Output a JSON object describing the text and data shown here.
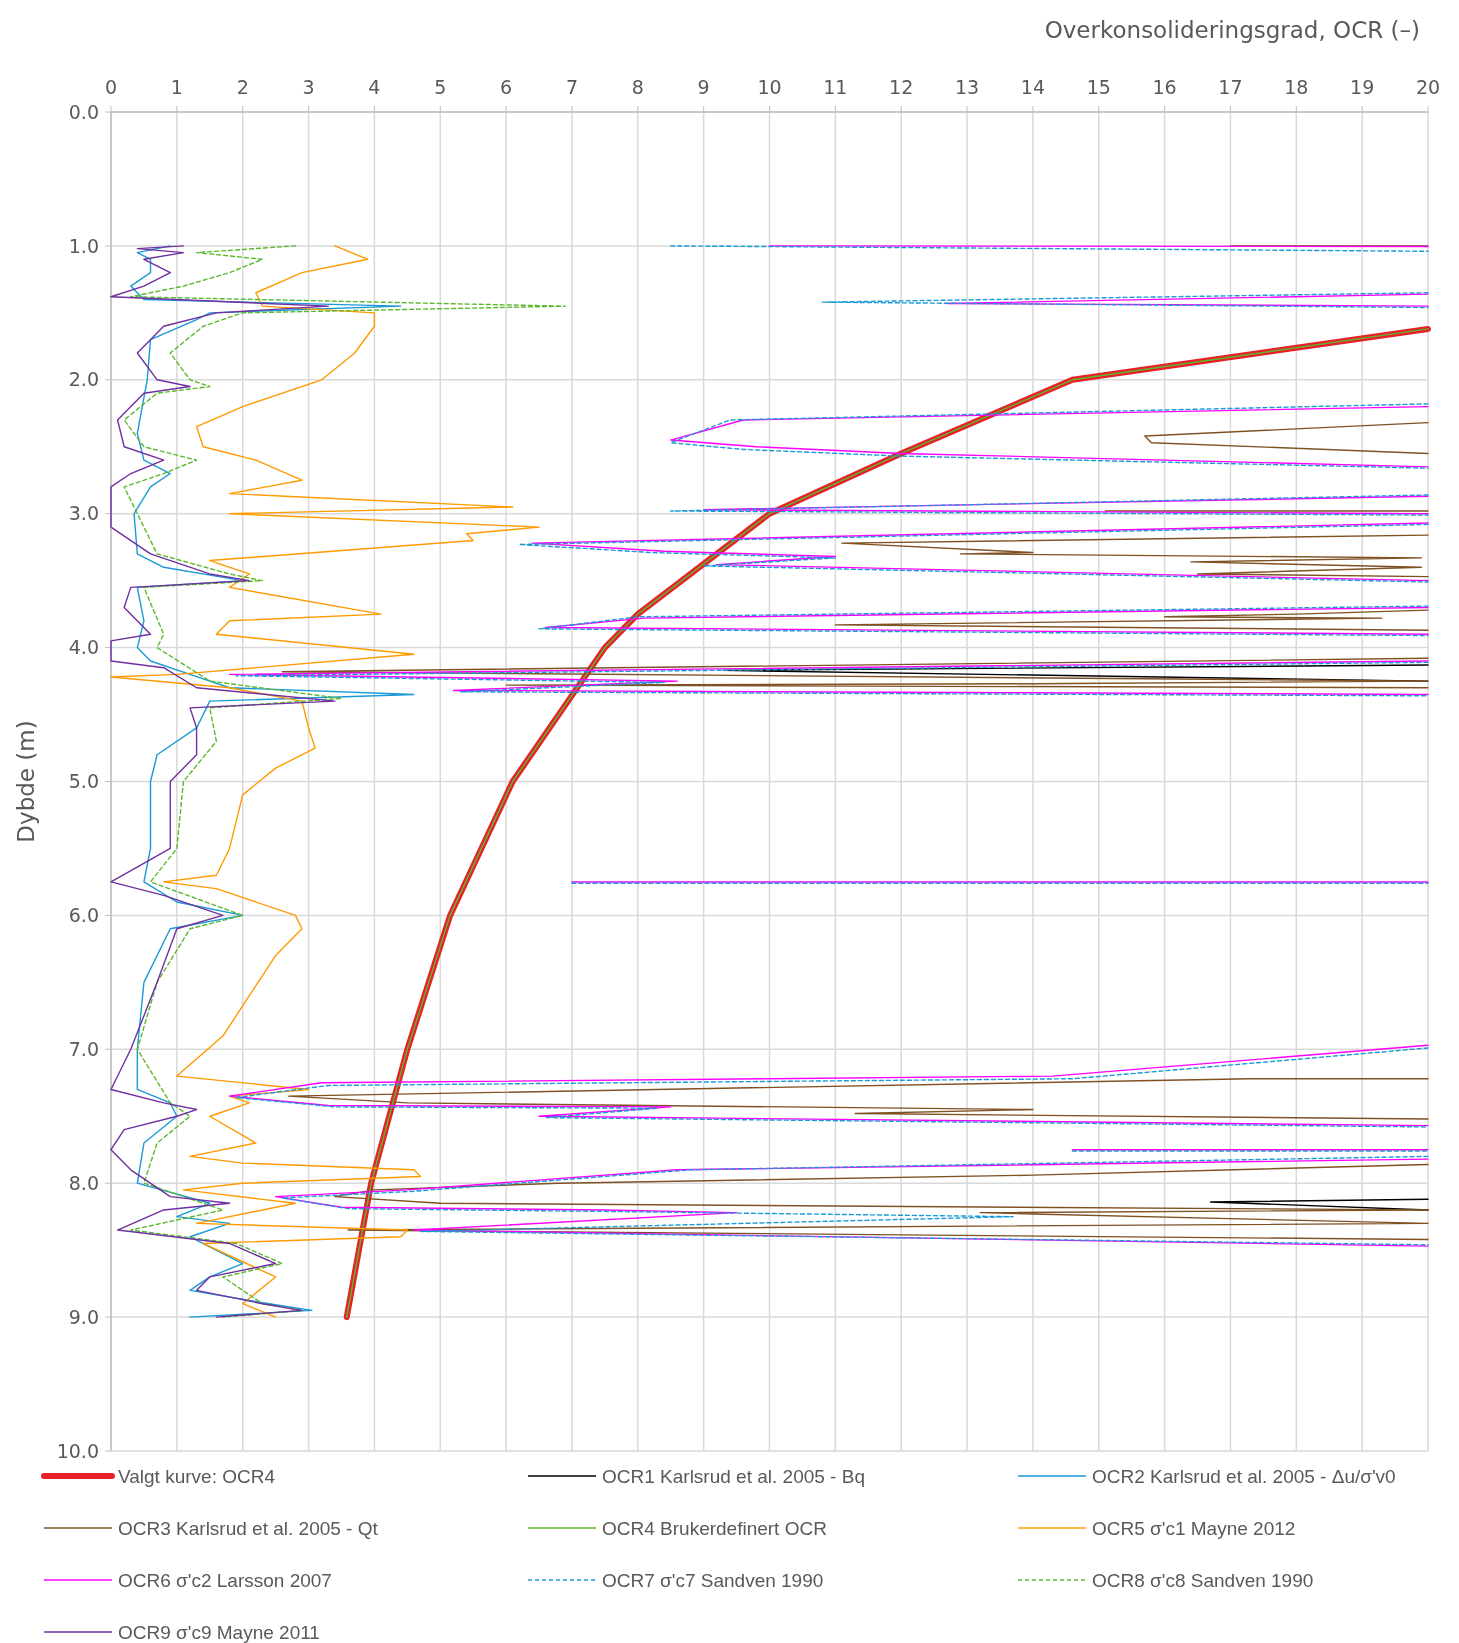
{
  "chart_data": {
    "type": "line",
    "xlabel": "Overkonsolideringsgrad, OCR (–)",
    "ylabel": "Dybde (m)",
    "xlim": [
      0,
      20
    ],
    "xticks": [
      0,
      1,
      2,
      3,
      4,
      5,
      6,
      7,
      8,
      9,
      10,
      11,
      12,
      13,
      14,
      15,
      16,
      17,
      18,
      19,
      20
    ],
    "ylim": [
      10,
      0
    ],
    "yticks": [
      {
        "value": 0,
        "label": "0.0"
      },
      {
        "value": 1,
        "label": "1.0"
      },
      {
        "value": 2,
        "label": "2.0"
      },
      {
        "value": 3,
        "label": "3.0"
      },
      {
        "value": 4,
        "label": "4.0"
      },
      {
        "value": 5,
        "label": "5.0"
      },
      {
        "value": 6,
        "label": "6.0"
      },
      {
        "value": 7,
        "label": "7.0"
      },
      {
        "value": 8,
        "label": "8.0"
      },
      {
        "value": 9,
        "label": "9.0"
      },
      {
        "value": 10,
        "label": "10.0"
      }
    ],
    "grid": true,
    "legend": "bottom",
    "series": [
      {
        "name": "Valgt kurve: OCR4",
        "color": "#e8202a",
        "line_style": "solid",
        "x": [
          20,
          14.6,
          12,
          10,
          8,
          7.5,
          6.1,
          5.15,
          4.5,
          3.95,
          3.58
        ],
        "values": [
          1.62,
          2.0,
          2.55,
          3.0,
          3.75,
          4.0,
          5.0,
          6.0,
          7.0,
          8.0,
          9.0
        ]
      },
      {
        "name": "OCR1 Karlsrud et al. 2005 - Bq",
        "color": "#000000",
        "line_style": "solid",
        "x": [
          20,
          9.3,
          20,
          null,
          20,
          16.7,
          20
        ],
        "values": [
          4.13,
          4.17,
          4.25,
          null,
          8.12,
          8.14,
          8.2
        ]
      },
      {
        "name": "OCR2 Karlsrud et al. 2005 - Δu/σ'v0",
        "color": "#1a9ad6",
        "line_style": "solid",
        "x": [
          0.9,
          0.4,
          0.6,
          0.6,
          0.3,
          0.5,
          4.4,
          1.5,
          1.3,
          0.6,
          0.55,
          0.4,
          0.5,
          0.9,
          0.6,
          0.35,
          0.4,
          0.8,
          2.0,
          0.4,
          0.5,
          0.4,
          0.6,
          1.2,
          1.8,
          4.6,
          1.5,
          1.3,
          0.7,
          0.6,
          0.6,
          0.5,
          1.0,
          2.0,
          0.9,
          0.5,
          0.4,
          0.4,
          0.9,
          1.0,
          0.5,
          0.4,
          1.5,
          1.0,
          1.8,
          1.2,
          2.0,
          1.5,
          1.2,
          2.4,
          3.05,
          1.2
        ],
        "values": [
          1.0,
          1.05,
          1.1,
          1.2,
          1.3,
          1.4,
          1.45,
          1.5,
          1.55,
          1.7,
          2.0,
          2.4,
          2.6,
          2.7,
          2.8,
          3.0,
          3.3,
          3.4,
          3.5,
          3.55,
          3.8,
          4.0,
          4.1,
          4.2,
          4.3,
          4.35,
          4.4,
          4.6,
          4.8,
          5.0,
          5.5,
          5.75,
          5.9,
          6.0,
          6.1,
          6.5,
          7.0,
          7.3,
          7.4,
          7.5,
          7.7,
          8.0,
          8.15,
          8.25,
          8.3,
          8.4,
          8.6,
          8.7,
          8.8,
          8.9,
          8.95,
          9.0
        ]
      },
      {
        "name": "OCR3 Karlsrud et al. 2005 - Qt",
        "color": "#7f5123",
        "line_style": "solid",
        "x": [
          17,
          20,
          null,
          20,
          15.7,
          15.8,
          20,
          null,
          15.1,
          20,
          null,
          20,
          11.1,
          14,
          12.9,
          19.9,
          16.4,
          19.9,
          16.5,
          20,
          null,
          20,
          18,
          16,
          19.3,
          11,
          20,
          null,
          20,
          2.6,
          20,
          14,
          6,
          20,
          null,
          20,
          17.3,
          2.7,
          4.5,
          14,
          11.3,
          20,
          null,
          20,
          14,
          6.8,
          4,
          3.4,
          5,
          20,
          13.2,
          14,
          20,
          3.6,
          20
        ],
        "values": [
          1.0,
          1.0,
          null,
          2.32,
          2.42,
          2.47,
          2.55,
          null,
          2.98,
          2.98,
          null,
          3.16,
          3.22,
          3.29,
          3.3,
          3.33,
          3.36,
          3.4,
          3.45,
          3.47,
          null,
          3.72,
          3.75,
          3.77,
          3.78,
          3.83,
          3.87,
          null,
          4.08,
          4.18,
          4.25,
          4.27,
          4.28,
          4.3,
          null,
          7.22,
          7.22,
          7.35,
          7.4,
          7.45,
          7.48,
          7.52,
          null,
          7.86,
          7.94,
          8.0,
          8.05,
          8.1,
          8.15,
          8.2,
          8.22,
          8.23,
          8.3,
          8.35,
          8.42
        ]
      },
      {
        "name": "OCR4 Brukerdefinert OCR",
        "color": "#5cb82d",
        "line_style": "solid",
        "x": [
          20,
          14.6,
          12,
          10,
          8,
          7.5,
          6.1,
          5.15,
          4.5,
          3.95,
          3.58
        ],
        "values": [
          1.62,
          2.0,
          2.55,
          3.0,
          3.75,
          4.0,
          5.0,
          6.0,
          7.0,
          8.0,
          9.0
        ]
      },
      {
        "name": "OCR5 σ'c1 Mayne 2012",
        "color": "#ff9a00",
        "line_style": "solid",
        "x": [
          3.4,
          3.9,
          2.9,
          2.2,
          2.3,
          4.0,
          4.0,
          3.7,
          3.2,
          2.0,
          1.3,
          1.4,
          2.2,
          2.9,
          1.8,
          6.1,
          1.8,
          6.5,
          5.4,
          5.5,
          1.5,
          2.1,
          1.8,
          4.1,
          1.8,
          1.6,
          4.6,
          1.0,
          0,
          1.8,
          2.9,
          3.0,
          3.1,
          2.5,
          2.0,
          1.8,
          1.6,
          0.8,
          1.6,
          2.8,
          2.9,
          2.5,
          2.1,
          1.7,
          1.0,
          3.0,
          1.8,
          2.1,
          1.5,
          2.2,
          1.2,
          2.0,
          4.6,
          4.7,
          2.0,
          1.1,
          2.8,
          1.3,
          4.5,
          4.4,
          1.4,
          2.5,
          2.0,
          2.5
        ],
        "values": [
          1.0,
          1.1,
          1.2,
          1.35,
          1.45,
          1.5,
          1.6,
          1.8,
          2.0,
          2.2,
          2.35,
          2.5,
          2.6,
          2.75,
          2.85,
          2.95,
          3.0,
          3.1,
          3.15,
          3.2,
          3.35,
          3.45,
          3.55,
          3.75,
          3.8,
          3.9,
          4.05,
          4.2,
          4.22,
          4.3,
          4.4,
          4.6,
          4.75,
          4.9,
          5.1,
          5.5,
          5.7,
          5.75,
          5.8,
          6.0,
          6.1,
          6.3,
          6.6,
          6.9,
          7.2,
          7.3,
          7.35,
          7.4,
          7.5,
          7.7,
          7.8,
          7.85,
          7.9,
          7.95,
          8.0,
          8.05,
          8.15,
          8.3,
          8.35,
          8.4,
          8.45,
          8.7,
          8.9,
          9.0
        ]
      },
      {
        "name": "OCR6 σ'c2 Larsson 2007",
        "color": "#ff00ff",
        "line_style": "solid",
        "x": [
          10,
          20,
          null,
          20,
          12.7,
          20,
          null,
          20,
          9.6,
          8.5,
          9.8,
          12,
          20,
          null,
          20,
          9,
          20,
          null,
          20,
          6.4,
          8.4,
          11,
          9.2,
          20,
          null,
          20,
          8.1,
          6.6,
          20,
          null,
          20,
          1.8,
          8.6,
          5.2,
          20,
          null,
          7,
          20,
          null,
          20,
          14.3,
          10,
          3.2,
          1.8,
          3.3,
          8.5,
          6.5,
          20,
          null,
          14.6,
          20,
          null,
          20,
          8.6,
          4.5,
          2.5,
          3.5,
          7.5,
          9.5,
          4.6,
          20
        ],
        "values": [
          1.0,
          1.005,
          null,
          1.36,
          1.43,
          1.45,
          null,
          2.2,
          2.3,
          2.45,
          2.5,
          2.55,
          2.65,
          null,
          2.87,
          2.97,
          3.0,
          null,
          3.07,
          3.22,
          3.28,
          3.32,
          3.38,
          3.5,
          null,
          3.7,
          3.78,
          3.85,
          3.9,
          null,
          4.1,
          4.2,
          4.25,
          4.32,
          4.35,
          null,
          5.75,
          5.75,
          null,
          6.97,
          7.2,
          7.22,
          7.25,
          7.35,
          7.42,
          7.43,
          7.5,
          7.57,
          null,
          7.75,
          7.75,
          null,
          7.82,
          7.9,
          8.05,
          8.1,
          8.18,
          8.2,
          8.22,
          8.35,
          8.47
        ]
      },
      {
        "name": "OCR7 σ'c7 Sandven 1990",
        "color": "#1a9ad6",
        "line_style": "dashed",
        "x": [
          8.5,
          20,
          null,
          20,
          10.8,
          20,
          null,
          20,
          9.4,
          8.5,
          9.6,
          12,
          20,
          null,
          20,
          8.5,
          20,
          null,
          20,
          6.2,
          8.2,
          11,
          9,
          20,
          null,
          20,
          8,
          6.5,
          20,
          null,
          20,
          1.9,
          8.4,
          5.3,
          20,
          null,
          7,
          20,
          null,
          20,
          14.6,
          10,
          3.3,
          1.9,
          3.4,
          8.3,
          6.6,
          20,
          null,
          14.6,
          20,
          null,
          20,
          8.8,
          4.6,
          2.6,
          3.6,
          7.4,
          13.7,
          4.7,
          20
        ],
        "values": [
          1.0,
          1.04,
          null,
          1.35,
          1.42,
          1.46,
          null,
          2.18,
          2.3,
          2.47,
          2.52,
          2.57,
          2.66,
          null,
          2.86,
          2.98,
          3.01,
          null,
          3.08,
          3.23,
          3.29,
          3.33,
          3.39,
          3.51,
          null,
          3.69,
          3.77,
          3.86,
          3.91,
          null,
          4.11,
          4.21,
          4.26,
          4.33,
          4.36,
          null,
          5.76,
          5.76,
          null,
          6.99,
          7.22,
          7.24,
          7.27,
          7.36,
          7.43,
          7.44,
          7.51,
          7.58,
          null,
          7.76,
          7.76,
          null,
          7.8,
          7.9,
          8.06,
          8.11,
          8.19,
          8.21,
          8.25,
          8.36,
          8.46
        ]
      },
      {
        "name": "OCR8 σ'c8 Sandven 1990",
        "color": "#5cb82d",
        "line_style": "dashed",
        "x": [
          2.8,
          1.3,
          2.3,
          1.8,
          1.1,
          0.3,
          6.9,
          2.0,
          1.4,
          0.9,
          1.2,
          1.5,
          0.7,
          0.2,
          0.5,
          1.3,
          0.8,
          0.2,
          0.7,
          1.8,
          2.3,
          0.5,
          0.8,
          0.7,
          1.5,
          3.5,
          1.5,
          1.6,
          1.1,
          1.0,
          0.6,
          2.0,
          1.2,
          0.7,
          0.4,
          0.9,
          1.2,
          0.7,
          0.5,
          1.7,
          0.3,
          1.9,
          2.6,
          1.7,
          2.3,
          2.9,
          1.7
        ],
        "values": [
          1.0,
          1.05,
          1.1,
          1.2,
          1.3,
          1.38,
          1.45,
          1.5,
          1.6,
          1.8,
          2.0,
          2.05,
          2.1,
          2.3,
          2.5,
          2.6,
          2.7,
          2.8,
          3.3,
          3.45,
          3.5,
          3.55,
          3.9,
          4.0,
          4.25,
          4.38,
          4.45,
          4.7,
          5.0,
          5.5,
          5.75,
          6.0,
          6.1,
          6.5,
          7.0,
          7.4,
          7.5,
          7.7,
          8.0,
          8.2,
          8.35,
          8.45,
          8.6,
          8.7,
          8.9,
          8.95,
          9.0
        ]
      },
      {
        "name": "OCR9 σ'c9 Mayne 2011",
        "color": "#7030a0",
        "line_style": "solid",
        "x": [
          1.1,
          0.4,
          1.1,
          0.5,
          0.9,
          0.5,
          0,
          3.3,
          1.6,
          0.8,
          0.4,
          0.7,
          1.2,
          0.5,
          0.1,
          0.2,
          0.8,
          0.3,
          0,
          0,
          0,
          0.6,
          1.5,
          2.1,
          0.3,
          0.2,
          0.6,
          0,
          0,
          0.8,
          1.3,
          3.4,
          1.2,
          1.3,
          1.3,
          0.9,
          0.9,
          0,
          0.8,
          1.7,
          1.0,
          0.7,
          0.3,
          0,
          0.8,
          1.3,
          1.0,
          0.2,
          0,
          0.3,
          0.9,
          1.8,
          0.8,
          0.1,
          1.8,
          2.5,
          1.5,
          1.3,
          2.3,
          2.9,
          1.6
        ],
        "values": [
          1.0,
          1.02,
          1.05,
          1.1,
          1.2,
          1.3,
          1.38,
          1.45,
          1.5,
          1.6,
          1.8,
          2.0,
          2.05,
          2.1,
          2.3,
          2.5,
          2.6,
          2.7,
          2.8,
          3.0,
          3.1,
          3.3,
          3.45,
          3.5,
          3.55,
          3.7,
          3.9,
          3.95,
          4.1,
          4.15,
          4.3,
          4.4,
          4.45,
          4.6,
          4.8,
          5.0,
          5.5,
          5.75,
          5.85,
          6.0,
          6.1,
          6.5,
          7.0,
          7.3,
          7.4,
          7.45,
          7.5,
          7.6,
          7.75,
          7.9,
          8.1,
          8.15,
          8.2,
          8.35,
          8.45,
          8.6,
          8.7,
          8.8,
          8.9,
          8.95,
          9.0
        ]
      }
    ]
  }
}
